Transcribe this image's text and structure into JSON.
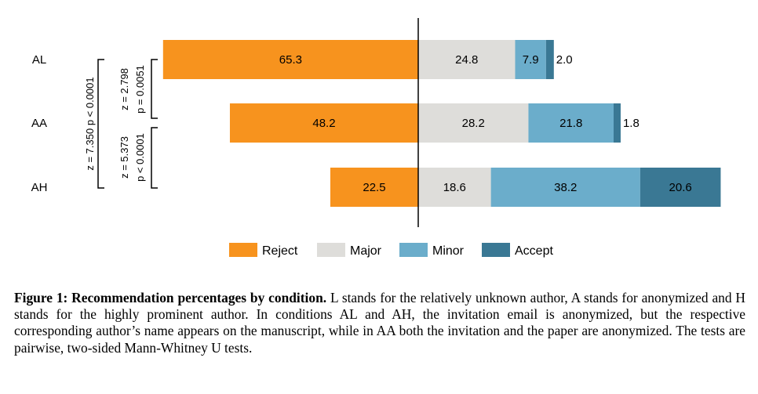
{
  "chart_data": {
    "type": "bar",
    "orientation": "horizontal",
    "stacked": "diverging",
    "categories": [
      "AL",
      "AA",
      "AH"
    ],
    "series": [
      {
        "name": "Reject",
        "values": [
          65.3,
          48.2,
          22.5
        ],
        "color": "#F7931E"
      },
      {
        "name": "Major",
        "values": [
          24.8,
          28.2,
          18.6
        ],
        "color": "#DEDDDA"
      },
      {
        "name": "Minor",
        "values": [
          7.9,
          21.8,
          38.2
        ],
        "color": "#6BADCB"
      },
      {
        "name": "Accept",
        "values": [
          2.0,
          1.8,
          20.6
        ],
        "color": "#3A7894"
      }
    ],
    "value_labels": [
      [
        "65.3",
        "24.8",
        "7.9",
        "2.0"
      ],
      [
        "48.2",
        "28.2",
        "21.8",
        "1.8"
      ],
      [
        "22.5",
        "18.6",
        "38.2",
        "20.6"
      ]
    ],
    "legend": "bottom",
    "grid": false,
    "comparisons": [
      {
        "pair": [
          "AL",
          "AA"
        ],
        "z": "z = 2.798",
        "p": "p = 0.0051"
      },
      {
        "pair": [
          "AA",
          "AH"
        ],
        "z": "z = 5.373",
        "p": "p < 0.0001"
      },
      {
        "pair": [
          "AL",
          "AH"
        ],
        "z": "z = 7.350",
        "p": "p < 0.0001"
      }
    ]
  },
  "caption": {
    "label": "Figure 1: Recommendation percentages by condition.",
    "text": "L stands for the relatively unknown author, A stands for anonymized and H stands for the highly prominent author. In conditions AL and AH, the invitation email is anonymized, but the respective corresponding author’s name appears on the manuscript, while in AA both the invitation and the paper are anonymized. The tests are pairwise, two-sided Mann-Whitney U tests."
  }
}
